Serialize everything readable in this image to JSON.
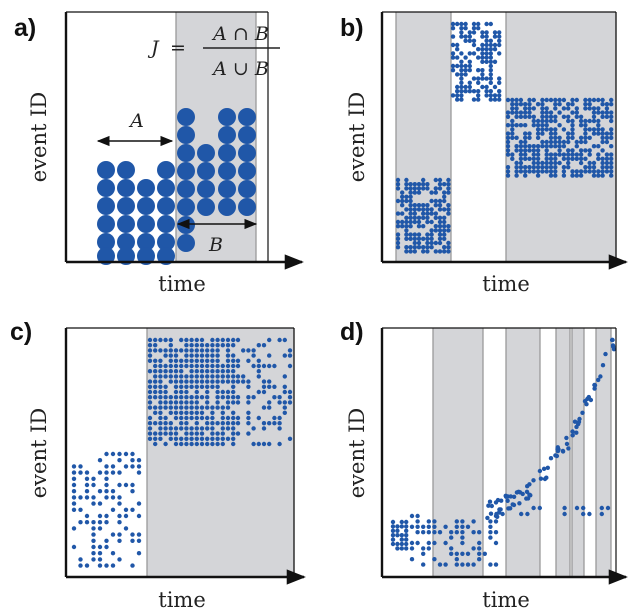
{
  "figure": {
    "colors": {
      "dot": "#2057a8",
      "band": "#d4d5d8",
      "band_edge": "#9a9a9a",
      "axis": "#111111"
    },
    "panels": [
      {
        "label": "a)",
        "xlabel": "time",
        "ylabel": "event ID",
        "formula": {
          "lhs": "J",
          "eq": "=",
          "num": "A ∩ B",
          "den": "A ∪ B"
        },
        "bracket_a": "A",
        "bracket_b": "B"
      },
      {
        "label": "b)",
        "xlabel": "time",
        "ylabel": "event ID"
      },
      {
        "label": "c)",
        "xlabel": "time",
        "ylabel": "event ID"
      },
      {
        "label": "d)",
        "xlabel": "time",
        "ylabel": "event ID"
      }
    ]
  }
}
